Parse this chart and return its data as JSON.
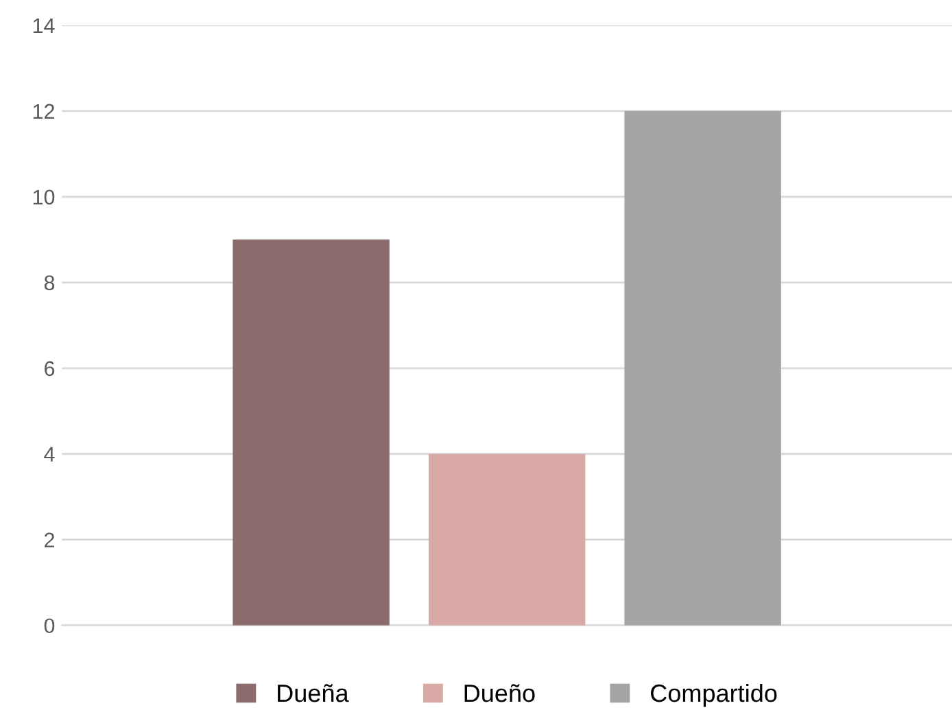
{
  "chart_data": {
    "type": "bar",
    "categories": [
      null
    ],
    "series": [
      {
        "name": "Dueña",
        "color": "#8b6b6b",
        "values": [
          9
        ]
      },
      {
        "name": "Dueño",
        "color": "#d9a9a8",
        "values": [
          4
        ]
      },
      {
        "name": "Compartido",
        "color": "#a5a5a5",
        "values": [
          12
        ]
      }
    ],
    "ylim": [
      0,
      14
    ],
    "yticks": [
      0,
      2,
      4,
      6,
      8,
      10,
      12,
      14
    ],
    "grid": "y",
    "legend": "bottom"
  }
}
